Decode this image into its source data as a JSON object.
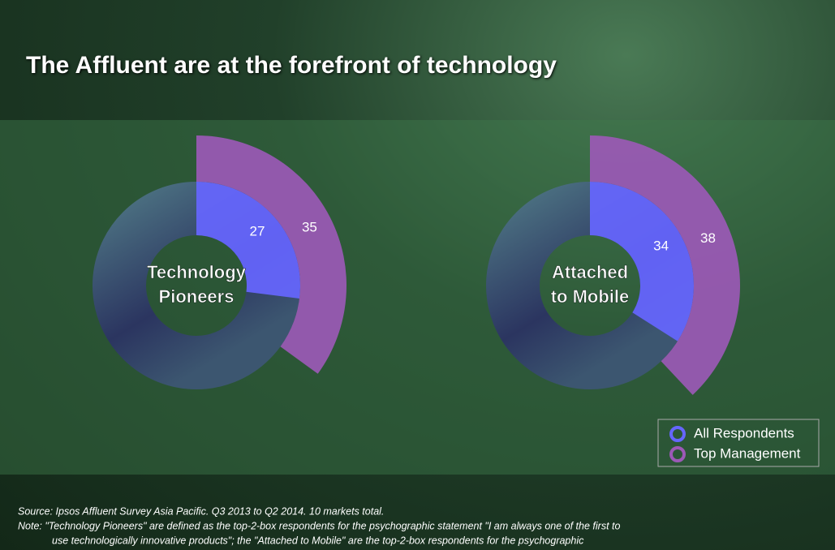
{
  "title": "The Affluent are at the forefront of technology",
  "chart_data": [
    {
      "type": "donut",
      "center_label": [
        "Technology",
        "Pioneers"
      ],
      "series": [
        {
          "name": "All Respondents",
          "color": "#6666ff",
          "values": [
            27
          ]
        },
        {
          "name": "Top Management",
          "color": "#9b59b6",
          "values": [
            35
          ]
        }
      ]
    },
    {
      "type": "donut",
      "center_label": [
        "Attached",
        "to Mobile"
      ],
      "series": [
        {
          "name": "All Respondents",
          "color": "#6666ff",
          "values": [
            34
          ]
        },
        {
          "name": "Top Management",
          "color": "#9b59b6",
          "values": [
            38
          ]
        }
      ]
    }
  ],
  "source": "Source: Ipsos Affluent Survey Asia Pacific. Q3 2013 to Q2 2014.  10 markets total.",
  "note": [
    "Note: \"Technology Pioneers\" are defined as the top-2-box respondents for the psychographic statement \"I am always one of the first to",
    "use technologically innovative products\"; the \"Attached to Mobile\" are the top-2-box respondents for the psychographic"
  ]
}
